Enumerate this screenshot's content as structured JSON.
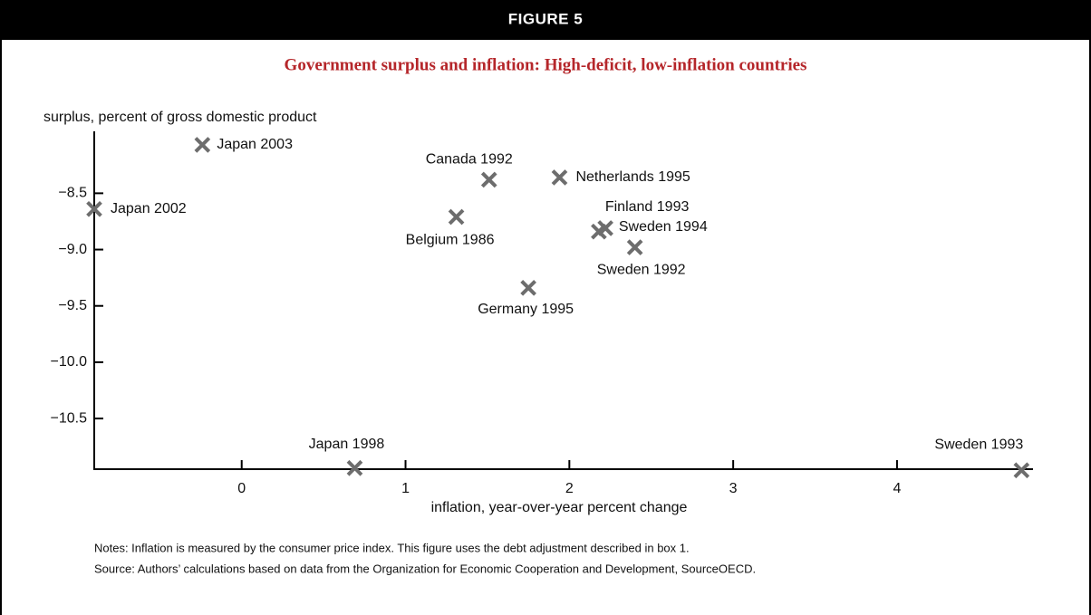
{
  "header": "FIGURE 5",
  "chart_data": {
    "type": "scatter",
    "title": "Government surplus and inflation: High-deficit, low-inflation countries",
    "ylabel": "surplus, percent of gross domestic product",
    "xlabel": "inflation, year-over-year percent change",
    "color": "#6d6d6d",
    "xlim": [
      -0.9,
      4.83
    ],
    "ylim": [
      -10.95,
      -7.95
    ],
    "xticks": [
      0,
      1,
      2,
      3,
      4
    ],
    "yticks": [
      {
        "value": -8.5,
        "label": "−8.5"
      },
      {
        "value": -9.0,
        "label": "−9.0"
      },
      {
        "value": -9.5,
        "label": "−9.5"
      },
      {
        "value": -10.0,
        "label": "−10.0"
      },
      {
        "value": -10.5,
        "label": "−10.5"
      }
    ],
    "x": [
      -0.24,
      -0.9,
      1.51,
      1.94,
      1.31,
      2.22,
      2.18,
      2.4,
      1.75,
      0.69,
      4.76
    ],
    "values": [
      -8.07,
      -8.64,
      -8.38,
      -8.36,
      -8.71,
      -8.81,
      -8.84,
      -8.98,
      -9.34,
      -10.94,
      -10.96
    ],
    "labels": [
      "Japan 2003",
      "Japan 2002",
      "Canada 1992",
      "Netherlands 1995",
      "Belgium 1986",
      "Finland 1993",
      "Sweden 1994",
      "Sweden 1992",
      "Germany 1995",
      "Japan 1998",
      "Sweden 1993"
    ]
  },
  "notes": [
    "Notes: Inflation is measured by the consumer price index. This figure uses the debt adjustment described in box 1.",
    "Source: Authors’ calculations based on data from the Organization for Economic Cooperation and Development, SourceOECD."
  ]
}
